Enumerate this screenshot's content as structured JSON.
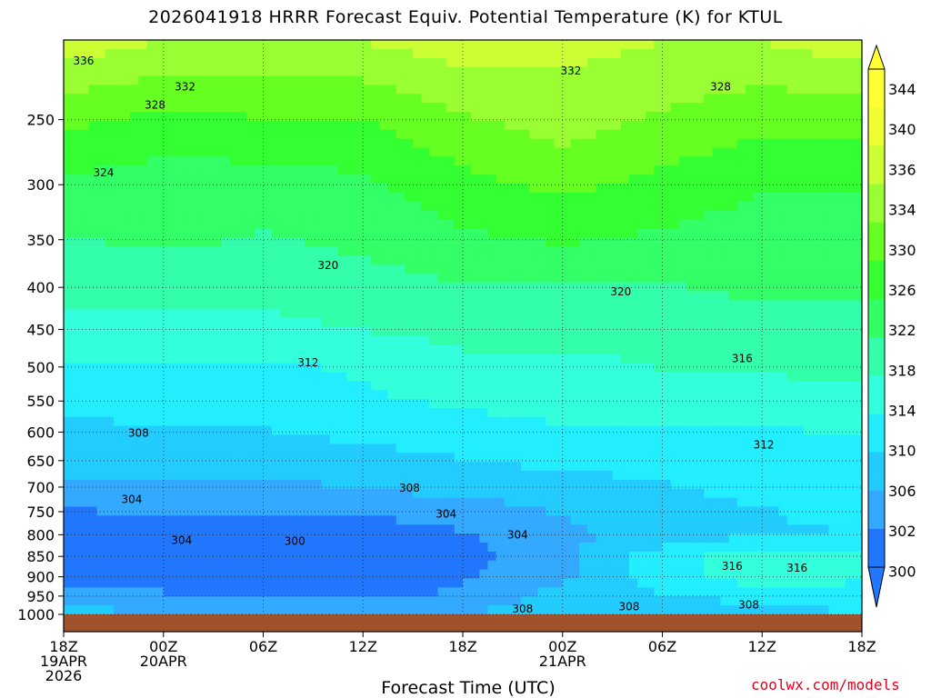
{
  "title": "2026041918 HRRR Forecast Equiv. Potential Temperature (K) for KTUL",
  "credit": "coolwx.com/models",
  "chart_data": {
    "type": "heatmap",
    "title": "2026041918 HRRR Forecast Equiv. Potential Temperature (K) for KTUL",
    "xlabel": "Forecast Time (UTC)",
    "ylabel": "",
    "x_ticks": [
      {
        "hour": 0,
        "lines": [
          "18Z",
          "19APR",
          "2026"
        ]
      },
      {
        "hour": 6,
        "lines": [
          "00Z",
          "20APR"
        ]
      },
      {
        "hour": 12,
        "lines": [
          "06Z"
        ]
      },
      {
        "hour": 18,
        "lines": [
          "12Z"
        ]
      },
      {
        "hour": 24,
        "lines": [
          "18Z"
        ]
      },
      {
        "hour": 30,
        "lines": [
          "00Z",
          "21APR"
        ]
      },
      {
        "hour": 36,
        "lines": [
          "06Z"
        ]
      },
      {
        "hour": 42,
        "lines": [
          "12Z"
        ]
      },
      {
        "hour": 48,
        "lines": [
          "18Z"
        ]
      }
    ],
    "xlim": [
      0,
      48
    ],
    "y_ticks": [
      250,
      300,
      350,
      400,
      450,
      500,
      550,
      600,
      650,
      700,
      750,
      800,
      850,
      900,
      950,
      1000
    ],
    "ylim": [
      1000,
      200
    ],
    "y_scale": "log-pressure",
    "colorbar": {
      "labels": [
        344,
        340,
        336,
        334,
        330,
        326,
        322,
        318,
        314,
        310,
        306,
        302,
        300
      ],
      "colors": [
        "#ffff33",
        "#f0ff33",
        "#ccff33",
        "#99ff33",
        "#66ff22",
        "#33ff33",
        "#33ff66",
        "#33ffaa",
        "#33ffdd",
        "#22eeff",
        "#22ccff",
        "#33aaff",
        "#2277ff"
      ]
    },
    "series": [
      {
        "name": "",
        "levels_hpa": [
          1000,
          950,
          900,
          850,
          800,
          750,
          700,
          650,
          600,
          550,
          500,
          450,
          400,
          350,
          300,
          250,
          200
        ],
        "x_hours": [
          0,
          6,
          12,
          18,
          24,
          30,
          36,
          42,
          48
        ],
        "values": [
          [
            308,
            307,
            306,
            306,
            307,
            308,
            309,
            309,
            310
          ],
          [
            305,
            304,
            303,
            303,
            304,
            308,
            310,
            311,
            312
          ],
          [
            302,
            301,
            300,
            300,
            303,
            306,
            312,
            316,
            314
          ],
          [
            300,
            301,
            300,
            300,
            302,
            306,
            312,
            316,
            314
          ],
          [
            301,
            302,
            301,
            301,
            303,
            306,
            308,
            310,
            310
          ],
          [
            303,
            304,
            304,
            304,
            305,
            307,
            309,
            310,
            311
          ],
          [
            306,
            306,
            306,
            307,
            308,
            309,
            310,
            311,
            312
          ],
          [
            308,
            308,
            308,
            309,
            310,
            311,
            311,
            312,
            312
          ],
          [
            309,
            310,
            310,
            311,
            312,
            313,
            313,
            313,
            314
          ],
          [
            311,
            312,
            312,
            313,
            314,
            315,
            315,
            316,
            316
          ],
          [
            313,
            313,
            313,
            314,
            316,
            316,
            317,
            317,
            318
          ],
          [
            316,
            316,
            316,
            317,
            318,
            318,
            318,
            319,
            319
          ],
          [
            318,
            318,
            318,
            319,
            320,
            320,
            320,
            321,
            321
          ],
          [
            320,
            321,
            320,
            321,
            323,
            324,
            323,
            322,
            322
          ],
          [
            323,
            322,
            322,
            323,
            326,
            328,
            326,
            324,
            324
          ],
          [
            328,
            326,
            327,
            327,
            330,
            332,
            330,
            328,
            328
          ],
          [
            336,
            334,
            333,
            334,
            336,
            335,
            334,
            334,
            336
          ]
        ]
      }
    ],
    "contour_labels": [
      {
        "text": "336",
        "x": 1.2,
        "p": 212
      },
      {
        "text": "332",
        "x": 7.3,
        "p": 228
      },
      {
        "text": "328",
        "x": 5.5,
        "p": 240
      },
      {
        "text": "324",
        "x": 2.4,
        "p": 290
      },
      {
        "text": "332",
        "x": 30.5,
        "p": 218
      },
      {
        "text": "328",
        "x": 39.5,
        "p": 228
      },
      {
        "text": "320",
        "x": 15.9,
        "p": 376
      },
      {
        "text": "320",
        "x": 33.5,
        "p": 405
      },
      {
        "text": "316",
        "x": 40.8,
        "p": 488
      },
      {
        "text": "312",
        "x": 14.7,
        "p": 494
      },
      {
        "text": "312",
        "x": 42.1,
        "p": 622
      },
      {
        "text": "308",
        "x": 4.5,
        "p": 602
      },
      {
        "text": "308",
        "x": 20.8,
        "p": 702
      },
      {
        "text": "304",
        "x": 4.1,
        "p": 725
      },
      {
        "text": "304",
        "x": 23.0,
        "p": 755
      },
      {
        "text": "304",
        "x": 7.1,
        "p": 813
      },
      {
        "text": "300",
        "x": 13.9,
        "p": 815
      },
      {
        "text": "304",
        "x": 27.3,
        "p": 800
      },
      {
        "text": "316",
        "x": 40.2,
        "p": 874
      },
      {
        "text": "316",
        "x": 44.1,
        "p": 878
      },
      {
        "text": "308",
        "x": 27.6,
        "p": 985
      },
      {
        "text": "308",
        "x": 34.0,
        "p": 979
      },
      {
        "text": "308",
        "x": 41.2,
        "p": 973
      }
    ],
    "grid": true,
    "legend": "right"
  }
}
